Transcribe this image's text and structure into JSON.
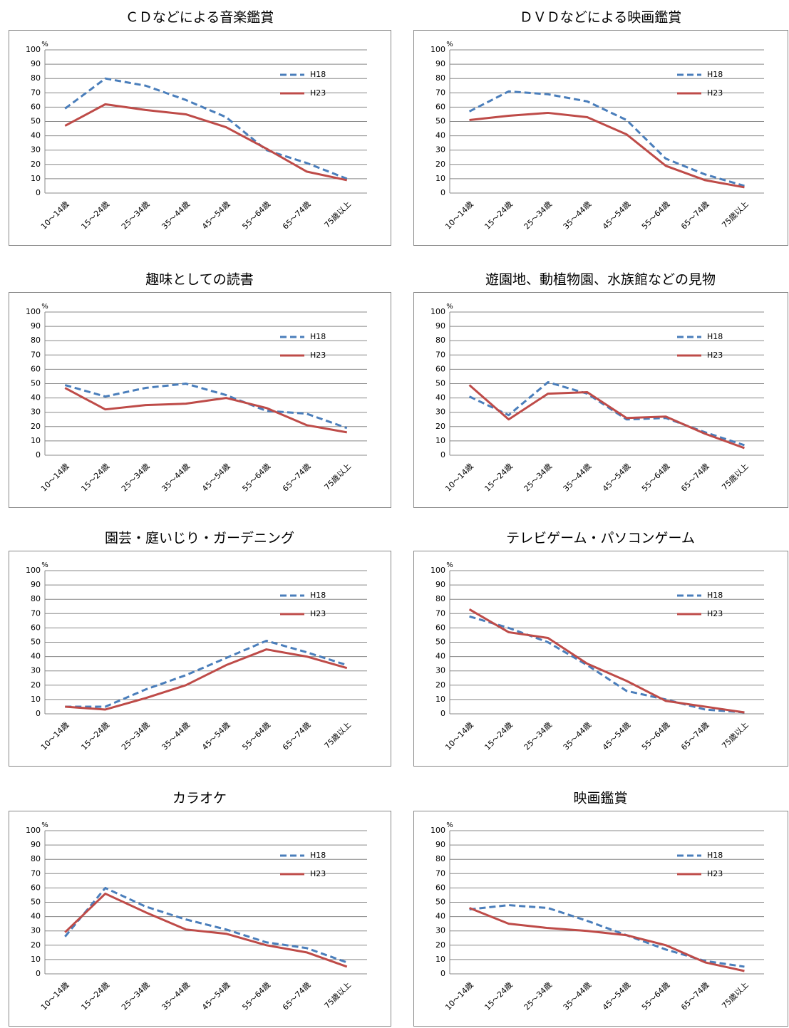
{
  "chart_data": [
    {
      "type": "line",
      "title": "ＣＤなどによる音楽鑑賞",
      "y_label": "%",
      "categories": [
        "10〜14歳",
        "15〜24歳",
        "25〜34歳",
        "35〜44歳",
        "45〜54歳",
        "55〜64歳",
        "65〜74歳",
        "75歳以上"
      ],
      "series": [
        {
          "name": "H18",
          "color": "#4a7ebb",
          "dash": true,
          "values": [
            59,
            80,
            75,
            65,
            53,
            30,
            21,
            10
          ]
        },
        {
          "name": "H23",
          "color": "#be4b48",
          "dash": false,
          "values": [
            47,
            62,
            58,
            55,
            46,
            31,
            15,
            9
          ]
        }
      ],
      "ylim": [
        0,
        100
      ],
      "yticks": [
        0,
        10,
        20,
        30,
        40,
        50,
        60,
        70,
        80,
        90,
        100
      ],
      "grid": true
    },
    {
      "type": "line",
      "title": "ＤＶＤなどによる映画鑑賞",
      "y_label": "%",
      "categories": [
        "10〜14歳",
        "15〜24歳",
        "25〜34歳",
        "35〜44歳",
        "45〜54歳",
        "55〜64歳",
        "65〜74歳",
        "75歳以上"
      ],
      "series": [
        {
          "name": "H18",
          "color": "#4a7ebb",
          "dash": true,
          "values": [
            57,
            71,
            69,
            64,
            51,
            24,
            13,
            5
          ]
        },
        {
          "name": "H23",
          "color": "#be4b48",
          "dash": false,
          "values": [
            51,
            54,
            56,
            53,
            41,
            19,
            9,
            4
          ]
        }
      ],
      "ylim": [
        0,
        100
      ],
      "yticks": [
        0,
        10,
        20,
        30,
        40,
        50,
        60,
        70,
        80,
        90,
        100
      ],
      "grid": true
    },
    {
      "type": "line",
      "title": "趣味としての読書",
      "y_label": "%",
      "categories": [
        "10〜14歳",
        "15〜24歳",
        "25〜34歳",
        "35〜44歳",
        "45〜54歳",
        "55〜64歳",
        "65〜74歳",
        "75歳以上"
      ],
      "series": [
        {
          "name": "H18",
          "color": "#4a7ebb",
          "dash": true,
          "values": [
            49,
            41,
            47,
            50,
            42,
            31,
            29,
            19
          ]
        },
        {
          "name": "H23",
          "color": "#be4b48",
          "dash": false,
          "values": [
            47,
            32,
            35,
            36,
            40,
            33,
            21,
            16
          ]
        }
      ],
      "ylim": [
        0,
        100
      ],
      "yticks": [
        0,
        10,
        20,
        30,
        40,
        50,
        60,
        70,
        80,
        90,
        100
      ],
      "grid": true
    },
    {
      "type": "line",
      "title": "遊園地、動植物園、水族館などの見物",
      "y_label": "%",
      "categories": [
        "10〜14歳",
        "15〜24歳",
        "25〜34歳",
        "35〜44歳",
        "45〜54歳",
        "55〜64歳",
        "65〜74歳",
        "75歳以上"
      ],
      "series": [
        {
          "name": "H18",
          "color": "#4a7ebb",
          "dash": true,
          "values": [
            41,
            28,
            51,
            43,
            25,
            26,
            16,
            7
          ]
        },
        {
          "name": "H23",
          "color": "#be4b48",
          "dash": false,
          "values": [
            49,
            25,
            43,
            44,
            26,
            27,
            15,
            5
          ]
        }
      ],
      "ylim": [
        0,
        100
      ],
      "yticks": [
        0,
        10,
        20,
        30,
        40,
        50,
        60,
        70,
        80,
        90,
        100
      ],
      "grid": true
    },
    {
      "type": "line",
      "title": "園芸・庭いじり・ガーデニング",
      "y_label": "%",
      "categories": [
        "10〜14歳",
        "15〜24歳",
        "25〜34歳",
        "35〜44歳",
        "45〜54歳",
        "55〜64歳",
        "65〜74歳",
        "75歳以上"
      ],
      "series": [
        {
          "name": "H18",
          "color": "#4a7ebb",
          "dash": true,
          "values": [
            5,
            5,
            17,
            27,
            39,
            51,
            43,
            34
          ]
        },
        {
          "name": "H23",
          "color": "#be4b48",
          "dash": false,
          "values": [
            5,
            3,
            11,
            20,
            34,
            45,
            40,
            32
          ]
        }
      ],
      "ylim": [
        0,
        100
      ],
      "yticks": [
        0,
        10,
        20,
        30,
        40,
        50,
        60,
        70,
        80,
        90,
        100
      ],
      "grid": true
    },
    {
      "type": "line",
      "title": "テレビゲーム・パソコンゲーム",
      "y_label": "%",
      "categories": [
        "10〜14歳",
        "15〜24歳",
        "25〜34歳",
        "35〜44歳",
        "45〜54歳",
        "55〜64歳",
        "65〜74歳",
        "75歳以上"
      ],
      "series": [
        {
          "name": "H18",
          "color": "#4a7ebb",
          "dash": true,
          "values": [
            68,
            60,
            50,
            34,
            16,
            10,
            3,
            1
          ]
        },
        {
          "name": "H23",
          "color": "#be4b48",
          "dash": false,
          "values": [
            73,
            57,
            53,
            35,
            23,
            9,
            5,
            1
          ]
        }
      ],
      "ylim": [
        0,
        100
      ],
      "yticks": [
        0,
        10,
        20,
        30,
        40,
        50,
        60,
        70,
        80,
        90,
        100
      ],
      "grid": true
    },
    {
      "type": "line",
      "title": "カラオケ",
      "y_label": "%",
      "categories": [
        "10〜14歳",
        "15〜24歳",
        "25〜34歳",
        "35〜44歳",
        "45〜54歳",
        "55〜64歳",
        "65〜74歳",
        "75歳以上"
      ],
      "series": [
        {
          "name": "H18",
          "color": "#4a7ebb",
          "dash": true,
          "values": [
            26,
            60,
            47,
            38,
            31,
            22,
            18,
            8
          ]
        },
        {
          "name": "H23",
          "color": "#be4b48",
          "dash": false,
          "values": [
            29,
            56,
            43,
            31,
            28,
            20,
            15,
            5
          ]
        }
      ],
      "ylim": [
        0,
        100
      ],
      "yticks": [
        0,
        10,
        20,
        30,
        40,
        50,
        60,
        70,
        80,
        90,
        100
      ],
      "grid": true
    },
    {
      "type": "line",
      "title": "映画鑑賞",
      "y_label": "%",
      "categories": [
        "10〜14歳",
        "15〜24歳",
        "25〜34歳",
        "35〜44歳",
        "45〜54歳",
        "55〜64歳",
        "65〜74歳",
        "75歳以上"
      ],
      "series": [
        {
          "name": "H18",
          "color": "#4a7ebb",
          "dash": true,
          "values": [
            45,
            48,
            46,
            37,
            27,
            17,
            9,
            5
          ]
        },
        {
          "name": "H23",
          "color": "#be4b48",
          "dash": false,
          "values": [
            46,
            35,
            32,
            30,
            27,
            20,
            8,
            2
          ]
        }
      ],
      "ylim": [
        0,
        100
      ],
      "yticks": [
        0,
        10,
        20,
        30,
        40,
        50,
        60,
        70,
        80,
        90,
        100
      ],
      "grid": true
    }
  ]
}
